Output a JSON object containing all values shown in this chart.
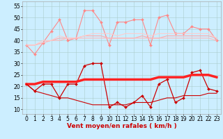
{
  "x": [
    0,
    1,
    2,
    3,
    4,
    5,
    6,
    7,
    8,
    9,
    10,
    11,
    12,
    13,
    14,
    15,
    16,
    17,
    18,
    19,
    20,
    21,
    22,
    23
  ],
  "series": [
    {
      "name": "rafales_spiky",
      "color": "#ff8888",
      "linewidth": 0.8,
      "marker": "D",
      "markersize": 2.0,
      "values": [
        38,
        34,
        39,
        44,
        49,
        40,
        41,
        53,
        53,
        48,
        38,
        48,
        48,
        49,
        49,
        38,
        50,
        51,
        43,
        43,
        46,
        45,
        45,
        40
      ]
    },
    {
      "name": "rafales_flat1",
      "color": "#ffaaaa",
      "linewidth": 0.8,
      "marker": null,
      "markersize": 0,
      "values": [
        38,
        38,
        39,
        40,
        41,
        41,
        41,
        42,
        42,
        42,
        41,
        41,
        41,
        41,
        42,
        41,
        41,
        42,
        42,
        42,
        42,
        42,
        42,
        41
      ]
    },
    {
      "name": "rafales_flat2",
      "color": "#ffbbbb",
      "linewidth": 0.8,
      "marker": null,
      "markersize": 0,
      "values": [
        38,
        38,
        39,
        40,
        40,
        41,
        41,
        41,
        41,
        41,
        41,
        41,
        41,
        41,
        41,
        41,
        41,
        41,
        41,
        41,
        41,
        41,
        41,
        40
      ]
    },
    {
      "name": "rafales_flat3",
      "color": "#ffcccc",
      "linewidth": 0.8,
      "marker": null,
      "markersize": 0,
      "values": [
        38,
        38,
        40,
        40,
        42,
        41,
        41,
        42,
        43,
        43,
        43,
        42,
        43,
        43,
        43,
        42,
        43,
        43,
        43,
        43,
        43,
        43,
        43,
        41
      ]
    },
    {
      "name": "vent_moyen_spiky",
      "color": "#cc0000",
      "linewidth": 0.9,
      "marker": "D",
      "markersize": 2.0,
      "values": [
        21,
        18,
        21,
        21,
        15,
        21,
        21,
        29,
        30,
        30,
        11,
        13,
        11,
        13,
        16,
        11,
        21,
        23,
        13,
        15,
        26,
        27,
        19,
        18
      ]
    },
    {
      "name": "vent_moyen_flat",
      "color": "#ff2222",
      "linewidth": 2.5,
      "marker": null,
      "markersize": 0,
      "values": [
        21,
        21,
        22,
        22,
        22,
        22,
        22,
        23,
        23,
        23,
        23,
        23,
        23,
        23,
        23,
        23,
        24,
        24,
        24,
        24,
        25,
        25,
        25,
        24
      ]
    },
    {
      "name": "vent_min_flat",
      "color": "#cc0000",
      "linewidth": 0.8,
      "marker": null,
      "markersize": 0,
      "values": [
        21,
        18,
        17,
        16,
        15,
        15,
        14,
        13,
        12,
        12,
        12,
        12,
        12,
        13,
        13,
        13,
        14,
        15,
        15,
        16,
        16,
        16,
        17,
        17
      ]
    }
  ],
  "xlabel": "Vent moyen/en rafales ( km/h )",
  "ylim": [
    8,
    57
  ],
  "yticks": [
    10,
    15,
    20,
    25,
    30,
    35,
    40,
    45,
    50,
    55
  ],
  "xlim": [
    -0.5,
    23.5
  ],
  "xticks": [
    0,
    1,
    2,
    3,
    4,
    5,
    6,
    7,
    8,
    9,
    10,
    11,
    12,
    13,
    14,
    15,
    16,
    17,
    18,
    19,
    20,
    21,
    22,
    23
  ],
  "background_color": "#cceeff",
  "grid_color": "#aacccc",
  "xlabel_fontsize": 6.5,
  "tick_fontsize": 5.5,
  "arrow_color": "#cc0000"
}
